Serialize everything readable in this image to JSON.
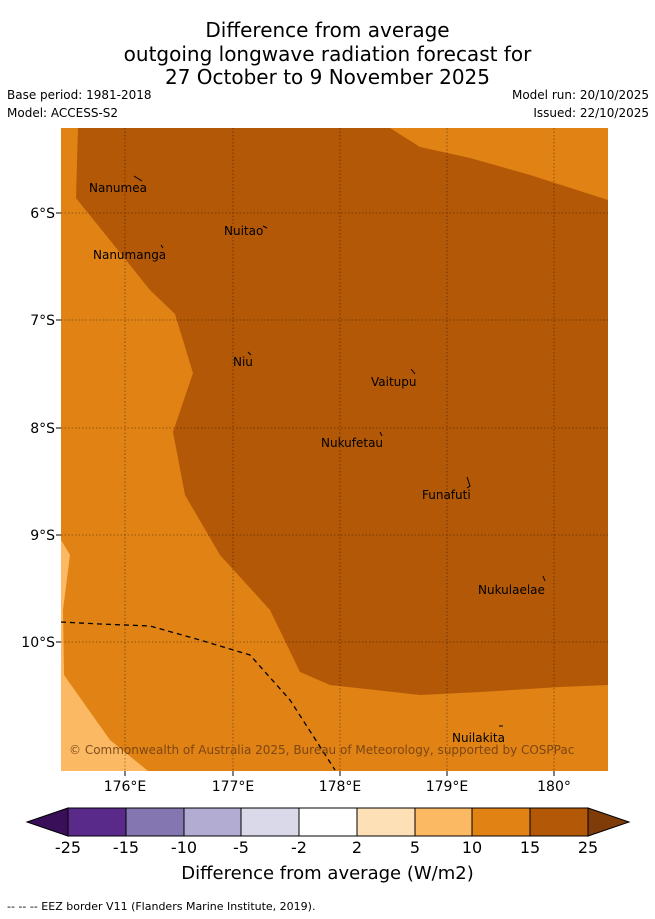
{
  "title": {
    "line1": "Difference from average",
    "line2": "outgoing longwave radiation forecast for",
    "line3": "27 October to 9 November 2025"
  },
  "meta": {
    "base_period": "Base period: 1981-2018",
    "model": "Model: ACCESS-S2",
    "model_run": "Model run: 20/10/2025",
    "issued": "Issued: 22/10/2025"
  },
  "axes": {
    "lon_labels": [
      "176°E",
      "177°E",
      "178°E",
      "179°E",
      "180°"
    ],
    "lat_labels": [
      "6°S",
      "7°S",
      "8°S",
      "9°S",
      "10°S"
    ]
  },
  "places": [
    "Nanumea",
    "Nuitao",
    "Nanumanga",
    "Niu",
    "Vaitupu",
    "Nukufetau",
    "Funafuti",
    "Nukulaelae",
    "Nuilakita"
  ],
  "copyright": "© Commonwealth of Australia 2025, Bureau of Meteorology, supported by COSPPac",
  "colorbar": {
    "title": "Difference from average (W/m2)",
    "ticks": [
      "-25",
      "-15",
      "-10",
      "-5",
      "-2",
      "2",
      "5",
      "10",
      "15",
      "25"
    ],
    "colors": [
      "#3a0f59",
      "#5a2a8a",
      "#8476b0",
      "#b3acd2",
      "#d9d9ea",
      "#ffffff",
      "#fde0b6",
      "#fbb963",
      "#e08214",
      "#b35806",
      "#7f3b08"
    ]
  },
  "footnote": "--  --  -- EEZ border V11 (Flanders Marine Institute, 2019)."
}
